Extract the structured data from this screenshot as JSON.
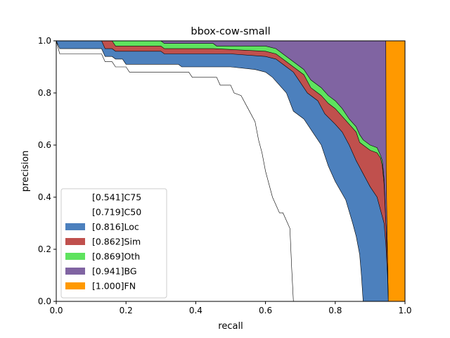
{
  "chart_data": {
    "type": "area",
    "title": "bbox-cow-small",
    "xlabel": "recall",
    "ylabel": "precision",
    "xlim": [
      0,
      1
    ],
    "ylim": [
      0,
      1
    ],
    "xticks": [
      "0.0",
      "0.2",
      "0.4",
      "0.6",
      "0.8",
      "1.0"
    ],
    "yticks": [
      "0.0",
      "0.2",
      "0.4",
      "0.6",
      "0.8",
      "1.0"
    ],
    "grid": false,
    "legend_position": "lower-left",
    "series": [
      {
        "name": "[0.541]C75",
        "color": "#ffffff",
        "points": [
          [
            0.0,
            1.0
          ],
          [
            0.01,
            0.95
          ],
          [
            0.13,
            0.95
          ],
          [
            0.14,
            0.92
          ],
          [
            0.16,
            0.92
          ],
          [
            0.17,
            0.9
          ],
          [
            0.2,
            0.9
          ],
          [
            0.21,
            0.88
          ],
          [
            0.38,
            0.88
          ],
          [
            0.39,
            0.86
          ],
          [
            0.46,
            0.86
          ],
          [
            0.47,
            0.83
          ],
          [
            0.5,
            0.83
          ],
          [
            0.51,
            0.8
          ],
          [
            0.53,
            0.79
          ],
          [
            0.55,
            0.74
          ],
          [
            0.57,
            0.69
          ],
          [
            0.58,
            0.62
          ],
          [
            0.59,
            0.57
          ],
          [
            0.6,
            0.5
          ],
          [
            0.61,
            0.45
          ],
          [
            0.62,
            0.4
          ],
          [
            0.63,
            0.37
          ],
          [
            0.64,
            0.34
          ],
          [
            0.65,
            0.34
          ],
          [
            0.66,
            0.31
          ],
          [
            0.67,
            0.28
          ],
          [
            0.675,
            0.13
          ],
          [
            0.68,
            0.0
          ]
        ]
      },
      {
        "name": "[0.719]C50",
        "color": "#ffffff",
        "points": [
          [
            0.0,
            1.0
          ],
          [
            0.01,
            0.97
          ],
          [
            0.13,
            0.97
          ],
          [
            0.14,
            0.94
          ],
          [
            0.16,
            0.94
          ],
          [
            0.17,
            0.93
          ],
          [
            0.19,
            0.93
          ],
          [
            0.2,
            0.91
          ],
          [
            0.35,
            0.91
          ],
          [
            0.36,
            0.9
          ],
          [
            0.5,
            0.9
          ],
          [
            0.57,
            0.89
          ],
          [
            0.6,
            0.88
          ],
          [
            0.62,
            0.86
          ],
          [
            0.66,
            0.8
          ],
          [
            0.68,
            0.73
          ],
          [
            0.71,
            0.7
          ],
          [
            0.74,
            0.64
          ],
          [
            0.76,
            0.6
          ],
          [
            0.78,
            0.52
          ],
          [
            0.8,
            0.46
          ],
          [
            0.83,
            0.39
          ],
          [
            0.85,
            0.3
          ],
          [
            0.86,
            0.25
          ],
          [
            0.87,
            0.18
          ],
          [
            0.875,
            0.1
          ],
          [
            0.88,
            0.0
          ]
        ]
      },
      {
        "name": "[0.816]Loc",
        "color": "#4c80bd",
        "points": [
          [
            0.0,
            1.0
          ],
          [
            0.13,
            1.0
          ],
          [
            0.14,
            0.97
          ],
          [
            0.16,
            0.97
          ],
          [
            0.17,
            0.96
          ],
          [
            0.3,
            0.96
          ],
          [
            0.31,
            0.95
          ],
          [
            0.5,
            0.95
          ],
          [
            0.6,
            0.94
          ],
          [
            0.63,
            0.93
          ],
          [
            0.66,
            0.9
          ],
          [
            0.68,
            0.88
          ],
          [
            0.7,
            0.84
          ],
          [
            0.72,
            0.8
          ],
          [
            0.75,
            0.77
          ],
          [
            0.77,
            0.72
          ],
          [
            0.8,
            0.68
          ],
          [
            0.82,
            0.65
          ],
          [
            0.84,
            0.6
          ],
          [
            0.86,
            0.54
          ],
          [
            0.88,
            0.49
          ],
          [
            0.9,
            0.44
          ],
          [
            0.92,
            0.4
          ],
          [
            0.93,
            0.35
          ],
          [
            0.94,
            0.3
          ],
          [
            0.945,
            0.22
          ],
          [
            0.95,
            0.1
          ],
          [
            0.952,
            0.0
          ]
        ]
      },
      {
        "name": "[0.862]Sim",
        "color": "#c0504d",
        "points": [
          [
            0.0,
            1.0
          ],
          [
            0.14,
            1.0
          ],
          [
            0.16,
            1.0
          ],
          [
            0.17,
            0.98
          ],
          [
            0.3,
            0.98
          ],
          [
            0.31,
            0.97
          ],
          [
            0.45,
            0.97
          ],
          [
            0.6,
            0.96
          ],
          [
            0.63,
            0.95
          ],
          [
            0.66,
            0.92
          ],
          [
            0.68,
            0.9
          ],
          [
            0.71,
            0.87
          ],
          [
            0.73,
            0.82
          ],
          [
            0.76,
            0.79
          ],
          [
            0.78,
            0.76
          ],
          [
            0.8,
            0.74
          ],
          [
            0.82,
            0.71
          ],
          [
            0.84,
            0.68
          ],
          [
            0.86,
            0.65
          ],
          [
            0.87,
            0.61
          ],
          [
            0.88,
            0.6
          ],
          [
            0.9,
            0.58
          ],
          [
            0.92,
            0.57
          ],
          [
            0.93,
            0.55
          ],
          [
            0.935,
            0.52
          ],
          [
            0.94,
            0.45
          ],
          [
            0.945,
            0.3
          ],
          [
            0.95,
            0.15
          ],
          [
            0.952,
            0.0
          ]
        ]
      },
      {
        "name": "[0.869]Oth",
        "color": "#5ee35e",
        "points": [
          [
            0.0,
            1.0
          ],
          [
            0.3,
            1.0
          ],
          [
            0.31,
            0.99
          ],
          [
            0.45,
            0.99
          ],
          [
            0.46,
            0.98
          ],
          [
            0.6,
            0.98
          ],
          [
            0.63,
            0.97
          ],
          [
            0.66,
            0.94
          ],
          [
            0.68,
            0.92
          ],
          [
            0.71,
            0.89
          ],
          [
            0.73,
            0.85
          ],
          [
            0.76,
            0.82
          ],
          [
            0.78,
            0.79
          ],
          [
            0.8,
            0.77
          ],
          [
            0.82,
            0.74
          ],
          [
            0.84,
            0.7
          ],
          [
            0.86,
            0.67
          ],
          [
            0.87,
            0.64
          ],
          [
            0.88,
            0.62
          ],
          [
            0.9,
            0.6
          ],
          [
            0.92,
            0.59
          ],
          [
            0.93,
            0.56
          ],
          [
            0.935,
            0.54
          ],
          [
            0.94,
            0.47
          ],
          [
            0.945,
            0.3
          ],
          [
            0.95,
            0.15
          ],
          [
            0.952,
            0.0
          ]
        ]
      },
      {
        "name": "[0.941]BG",
        "color": "#8064a2",
        "points": [
          [
            0.0,
            1.0
          ],
          [
            0.945,
            1.0
          ],
          [
            0.946,
            0.5
          ],
          [
            0.95,
            0.15
          ],
          [
            0.952,
            0.0
          ]
        ]
      },
      {
        "name": "[1.000]FN",
        "color": "#ff9900",
        "points": [
          [
            0.0,
            1.0
          ],
          [
            1.0,
            1.0
          ],
          [
            1.0,
            0.0
          ]
        ]
      }
    ]
  }
}
